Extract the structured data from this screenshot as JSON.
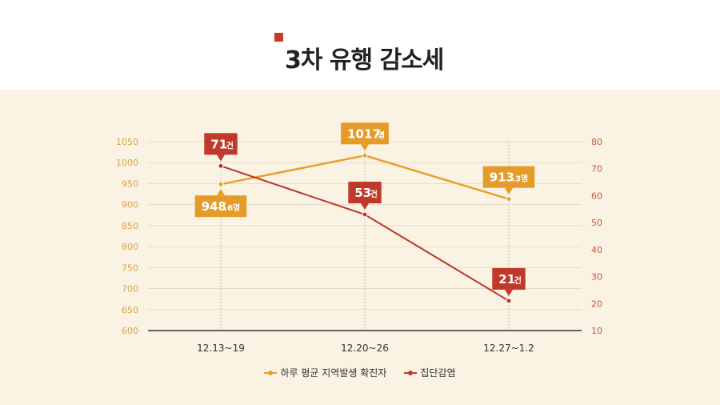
{
  "page": {
    "title": "3차 유행 감소세"
  },
  "colors": {
    "orange": "#e8a02e",
    "orange_dark": "#e59b2a",
    "red": "#c0392b",
    "red_line": "#b83a2a",
    "grid": "#e4dccb",
    "tick_left": "#d9a441",
    "tick_right": "#c35a40"
  },
  "chart_data": {
    "type": "line",
    "categories": [
      "12.13~19",
      "12.20~26",
      "12.27~1.2"
    ],
    "series": [
      {
        "name": "하루 평균 지역발생 확진자",
        "axis": "left",
        "values": [
          948.6,
          1017,
          913.3
        ],
        "labels": [
          {
            "main": "948",
            "sub": ".6명"
          },
          {
            "main": "1017",
            "sub": "명"
          },
          {
            "main": "913",
            "sub": ".3명"
          }
        ]
      },
      {
        "name": "집단감염",
        "axis": "right",
        "values": [
          71,
          53,
          21
        ],
        "labels": [
          {
            "main": "71",
            "sub": "건"
          },
          {
            "main": "53",
            "sub": "건"
          },
          {
            "main": "21",
            "sub": "건"
          }
        ]
      }
    ],
    "y_left": {
      "min": 600,
      "max": 1050,
      "ticks": [
        "1050",
        "1000",
        "950",
        "900",
        "850",
        "800",
        "750",
        "700",
        "650",
        "600"
      ]
    },
    "y_right": {
      "min": 10,
      "max": 80,
      "ticks": [
        "80",
        "70",
        "60",
        "50",
        "40",
        "30",
        "20",
        "10"
      ]
    },
    "grid": true,
    "legend": "bottom"
  }
}
